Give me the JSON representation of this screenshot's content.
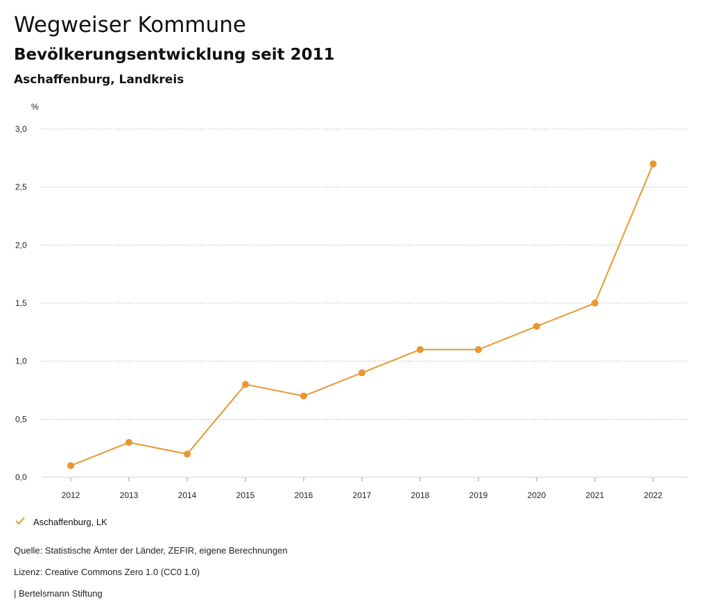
{
  "header": {
    "title": "Wegweiser Kommune",
    "subtitle": "Bevölkerungsentwicklung seit 2011",
    "region": "Aschaffenburg, Landkreis"
  },
  "chart_data": {
    "type": "line",
    "ylabel": "%",
    "x": [
      "2012",
      "2013",
      "2014",
      "2015",
      "2016",
      "2017",
      "2018",
      "2019",
      "2020",
      "2021",
      "2022"
    ],
    "series": [
      {
        "name": "Aschaffenburg, LK",
        "values": [
          0.1,
          0.3,
          0.2,
          0.8,
          0.7,
          0.9,
          1.1,
          1.1,
          1.3,
          1.5,
          2.7
        ]
      }
    ],
    "ylim": [
      0,
      3.0
    ],
    "yticks": [
      0.0,
      0.5,
      1.0,
      1.5,
      2.0,
      2.5,
      3.0
    ],
    "ytick_labels": [
      "0,0",
      "0,5",
      "1,0",
      "1,5",
      "2,0",
      "2,5",
      "3,0"
    ],
    "grid": true,
    "color": "#e8972e",
    "legend": "bottom-left"
  },
  "legend": {
    "label": "Aschaffenburg, LK"
  },
  "footer": {
    "source": "Quelle: Statistische Ämter der Länder, ZEFIR, eigene Berechnungen",
    "license": "Lizenz: Creative Commons Zero 1.0 (CC0 1.0)",
    "publisher": "| Bertelsmann Stiftung"
  }
}
